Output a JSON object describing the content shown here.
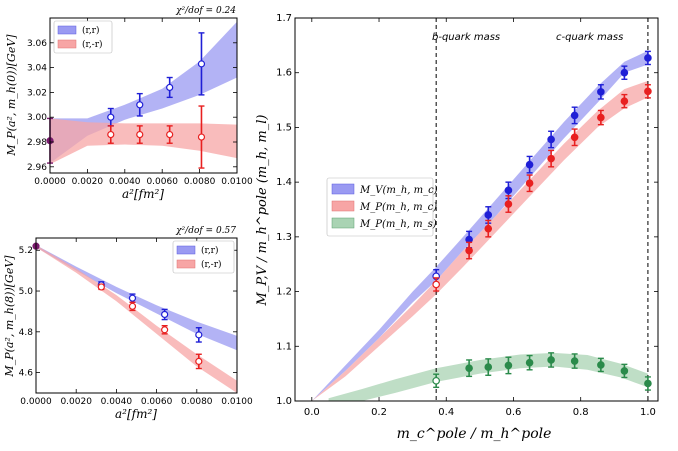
{
  "chart_data": [
    {
      "id": "top-left",
      "type": "scatter",
      "ylabel": "M_P(a², m_h(0))[GeV]",
      "xlabel": "a²[fm²]",
      "annotation": "χ²/dof = 0.24",
      "xlim": [
        0.0,
        0.01
      ],
      "ylim": [
        2.955,
        3.08
      ],
      "xticks": [
        0.0,
        0.002,
        0.004,
        0.006,
        0.008,
        0.01
      ],
      "xtick_labels": [
        "0.0000",
        "0.0020",
        "0.0040",
        "0.0060",
        "0.0080",
        "0.0100"
      ],
      "yticks": [
        2.96,
        2.98,
        3.0,
        3.02,
        3.04,
        3.06
      ],
      "ytick_labels": [
        "2.96",
        "2.98",
        "3.00",
        "3.02",
        "3.04",
        "3.06"
      ],
      "legend": [
        "(r,r)",
        "(r,-r)"
      ],
      "series": [
        {
          "name": "(r,r)",
          "color": "#1f1fd6",
          "band": "#9a9af2",
          "band_x": [
            0,
            0.002,
            0.004,
            0.006,
            0.008,
            0.01
          ],
          "band_lo": [
            2.963,
            2.985,
            2.998,
            3.007,
            3.018,
            3.032
          ],
          "band_hi": [
            2.999,
            2.999,
            3.01,
            3.023,
            3.045,
            3.077
          ],
          "x": [
            0.00325,
            0.0048,
            0.0064,
            0.0081
          ],
          "y": [
            3.0,
            3.01,
            3.024,
            3.043
          ],
          "err": [
            0.007,
            0.009,
            0.008,
            0.025
          ]
        },
        {
          "name": "(r,-r)",
          "color": "#e82020",
          "band": "#f7a5a5",
          "band_x": [
            0,
            0.002,
            0.004,
            0.006,
            0.008,
            0.01
          ],
          "band_lo": [
            2.962,
            2.977,
            2.978,
            2.977,
            2.973,
            2.967
          ],
          "band_hi": [
            2.999,
            2.996,
            2.995,
            2.995,
            2.995,
            2.994
          ],
          "x": [
            0.00325,
            0.0048,
            0.0064,
            0.0081
          ],
          "y": [
            2.986,
            2.986,
            2.986,
            2.984
          ],
          "err": [
            0.007,
            0.007,
            0.007,
            0.025
          ]
        }
      ],
      "extrapolated": {
        "x": 0.0,
        "y": 2.981,
        "err": 0.018,
        "color": "#7b1a6e"
      }
    },
    {
      "id": "bottom-left",
      "type": "scatter",
      "ylabel": "M_P(a², m_h(8))[GeV]",
      "xlabel": "a²[fm²]",
      "annotation": "χ²/dof = 0.57",
      "xlim": [
        0.0,
        0.01
      ],
      "ylim": [
        4.5,
        5.26
      ],
      "xticks": [
        0.0,
        0.002,
        0.004,
        0.006,
        0.008,
        0.01
      ],
      "xtick_labels": [
        "0.0000",
        "0.0020",
        "0.0040",
        "0.0060",
        "0.0080",
        "0.0100"
      ],
      "yticks": [
        4.6,
        4.8,
        5.0,
        5.2
      ],
      "ytick_labels": [
        "4.6",
        "4.8",
        "5.0",
        "5.2"
      ],
      "legend": [
        "(r,r)",
        "(r,-r)"
      ],
      "series": [
        {
          "name": "(r,r)",
          "color": "#1f1fd6",
          "band": "#9a9af2",
          "band_x": [
            0,
            0.002,
            0.004,
            0.006,
            0.008,
            0.01
          ],
          "band_lo": [
            5.215,
            5.1,
            4.99,
            4.89,
            4.79,
            4.71
          ],
          "band_hi": [
            5.225,
            5.12,
            5.02,
            4.93,
            4.85,
            4.78
          ],
          "x": [
            0.00325,
            0.0048,
            0.0064,
            0.0081
          ],
          "y": [
            5.03,
            4.965,
            4.885,
            4.785
          ],
          "err": [
            0.015,
            0.02,
            0.025,
            0.035
          ]
        },
        {
          "name": "(r,-r)",
          "color": "#e82020",
          "band": "#f7a5a5",
          "band_x": [
            0,
            0.002,
            0.004,
            0.006,
            0.008,
            0.01
          ],
          "band_lo": [
            5.215,
            5.09,
            4.95,
            4.79,
            4.63,
            4.5
          ],
          "band_hi": [
            5.225,
            5.11,
            4.98,
            4.83,
            4.69,
            4.56
          ],
          "x": [
            0.00325,
            0.0048,
            0.0064,
            0.0081
          ],
          "y": [
            5.02,
            4.925,
            4.81,
            4.655
          ],
          "err": [
            0.012,
            0.02,
            0.02,
            0.035
          ]
        }
      ],
      "extrapolated": {
        "x": 0.0,
        "y": 5.22,
        "err": 0.006,
        "color": "#7b1a6e"
      }
    },
    {
      "id": "right",
      "type": "scatter",
      "ylabel": "M_P,V / m_h^pole (m_h, m_l)",
      "xlabel": "m_c^pole / m_h^pole",
      "xlim": [
        -0.05,
        1.03
      ],
      "ylim": [
        1.0,
        1.7
      ],
      "xticks": [
        0.0,
        0.2,
        0.4,
        0.6,
        0.8,
        1.0
      ],
      "xtick_labels": [
        "0.0",
        "0.2",
        "0.4",
        "0.6",
        "0.8",
        "1.0"
      ],
      "yticks": [
        1.0,
        1.1,
        1.2,
        1.3,
        1.4,
        1.5,
        1.6,
        1.7
      ],
      "ytick_labels": [
        "1.0",
        "1.1",
        "1.2",
        "1.3",
        "1.4",
        "1.5",
        "1.6",
        "1.7"
      ],
      "vlines": [
        {
          "x": 0.37,
          "label": "b-quark mass"
        },
        {
          "x": 1.0,
          "label": "c-quark mass"
        }
      ],
      "legend": [
        "M_V(m_h, m_c)",
        "M_P(m_h, m_c)",
        "M_P(m_h, m_s)"
      ],
      "series": [
        {
          "name": "M_V(m_h, m_c)",
          "color": "#1f1fd6",
          "band": "#9a9af2",
          "band_x": [
            0,
            0.1,
            0.2,
            0.3,
            0.37,
            0.45,
            0.55,
            0.65,
            0.75,
            0.85,
            0.93,
            1.0
          ],
          "band_lo": [
            1.0,
            1.055,
            1.115,
            1.18,
            1.22,
            1.275,
            1.34,
            1.41,
            1.48,
            1.545,
            1.6,
            1.615
          ],
          "band_hi": [
            1.0,
            1.065,
            1.13,
            1.2,
            1.245,
            1.3,
            1.37,
            1.44,
            1.51,
            1.575,
            1.62,
            1.64
          ],
          "x": [
            0.468,
            0.525,
            0.585,
            0.648,
            0.712,
            0.782,
            0.86,
            0.93,
            1.0
          ],
          "y": [
            1.295,
            1.34,
            1.385,
            1.432,
            1.478,
            1.522,
            1.565,
            1.6,
            1.627
          ],
          "err": [
            0.015,
            0.015,
            0.015,
            0.015,
            0.015,
            0.015,
            0.013,
            0.012,
            0.012
          ],
          "open": {
            "x": 0.37,
            "y": 1.228,
            "err": 0.012
          }
        },
        {
          "name": "M_P(m_h, m_c)",
          "color": "#e82020",
          "band": "#f7a5a5",
          "band_x": [
            0,
            0.1,
            0.2,
            0.3,
            0.37,
            0.45,
            0.55,
            0.65,
            0.75,
            0.85,
            0.93,
            1.0
          ],
          "band_lo": [
            1.0,
            1.045,
            1.1,
            1.155,
            1.195,
            1.245,
            1.31,
            1.375,
            1.44,
            1.5,
            1.535,
            1.555
          ],
          "band_hi": [
            1.0,
            1.055,
            1.115,
            1.175,
            1.22,
            1.275,
            1.34,
            1.405,
            1.47,
            1.53,
            1.57,
            1.585
          ],
          "x": [
            0.468,
            0.525,
            0.585,
            0.648,
            0.712,
            0.782,
            0.86,
            0.93,
            1.0
          ],
          "y": [
            1.275,
            1.315,
            1.36,
            1.398,
            1.443,
            1.482,
            1.518,
            1.548,
            1.566
          ],
          "err": [
            0.015,
            0.015,
            0.015,
            0.015,
            0.015,
            0.015,
            0.013,
            0.012,
            0.012
          ],
          "open": {
            "x": 0.37,
            "y": 1.213,
            "err": 0.012
          }
        },
        {
          "name": "M_P(m_h, m_s)",
          "color": "#2a8a4a",
          "band": "#a9d3b3",
          "band_x": [
            0.05,
            0.15,
            0.25,
            0.37,
            0.5,
            0.62,
            0.72,
            0.82,
            0.92,
            1.0
          ],
          "band_lo": [
            1.0,
            1.0,
            1.015,
            1.035,
            1.05,
            1.06,
            1.063,
            1.057,
            1.043,
            1.025
          ],
          "band_hi": [
            1.005,
            1.022,
            1.04,
            1.06,
            1.075,
            1.085,
            1.088,
            1.084,
            1.068,
            1.05
          ],
          "x": [
            0.468,
            0.525,
            0.585,
            0.648,
            0.712,
            0.782,
            0.86,
            0.93,
            1.0
          ],
          "y": [
            1.06,
            1.062,
            1.065,
            1.07,
            1.075,
            1.073,
            1.066,
            1.055,
            1.032
          ],
          "err": [
            0.015,
            0.015,
            0.015,
            0.013,
            0.013,
            0.013,
            0.012,
            0.012,
            0.012
          ],
          "open": {
            "x": 0.37,
            "y": 1.037,
            "err": 0.012
          }
        }
      ]
    }
  ]
}
